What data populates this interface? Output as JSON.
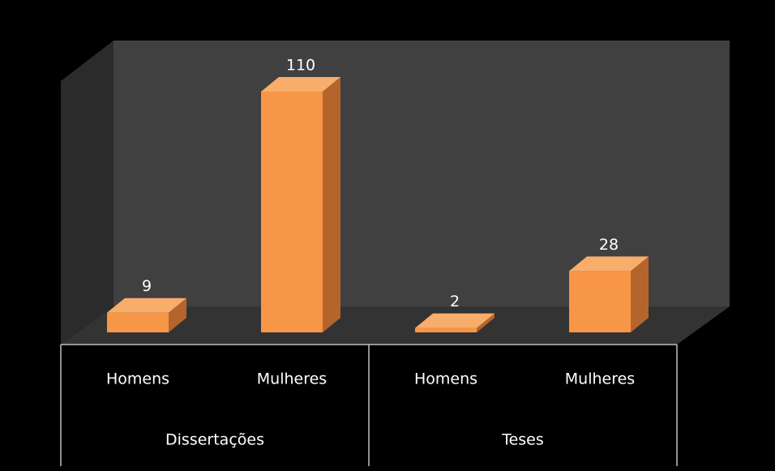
{
  "chart_data": {
    "type": "bar3d",
    "categories": [
      "Homens",
      "Mulheres",
      "Homens",
      "Mulheres"
    ],
    "groups": [
      "Dissertações",
      "Teses"
    ],
    "values": [
      9,
      110,
      2,
      28
    ],
    "color": "#f79646"
  }
}
